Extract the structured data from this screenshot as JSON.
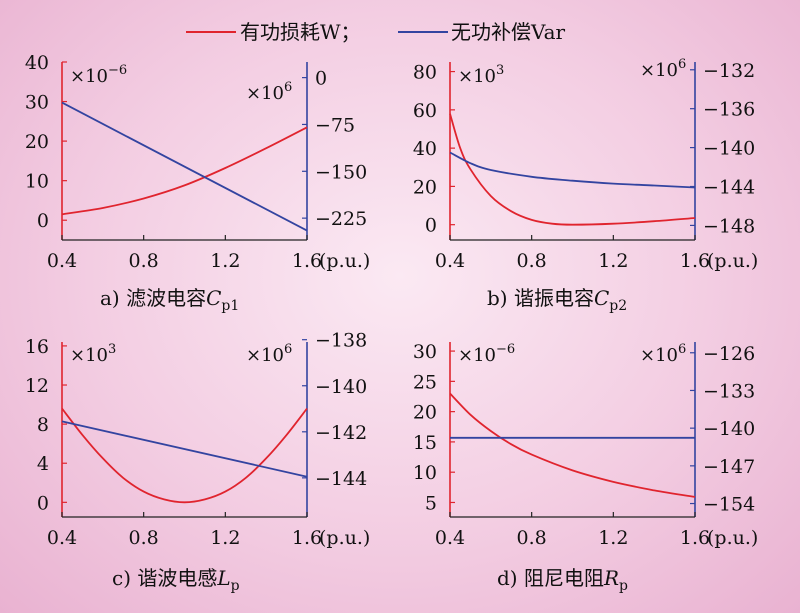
{
  "legend": {
    "active": {
      "label": "有功损耗W；",
      "color": "#e0242e"
    },
    "reactive": {
      "label": "无功补偿Var",
      "color": "#3344a0"
    }
  },
  "chart_data": [
    {
      "type": "line",
      "caption": {
        "prefix": "a) 滤波电容",
        "var": "C",
        "sub": "p1"
      },
      "xlim": [
        0.4,
        1.6
      ],
      "xticks": [
        "0.4",
        "0.8",
        "1.2",
        "1.6"
      ],
      "xunit": "(p.u.)",
      "left_axis": {
        "ylim": [
          -5,
          40
        ],
        "ticks": [
          0,
          10,
          20,
          30,
          40
        ],
        "multiplier": "×10",
        "exp": "−6"
      },
      "right_axis": {
        "ylim": [
          -260,
          25
        ],
        "ticks": [
          "0",
          "−75",
          "−150",
          "−225"
        ],
        "tick_values": [
          0,
          -75,
          -150,
          -225
        ],
        "multiplier": "×10",
        "exp": "6"
      },
      "series": [
        {
          "axis": "left",
          "color": "#e0242e",
          "x": [
            0.4,
            0.6,
            0.8,
            1.0,
            1.2,
            1.4,
            1.6
          ],
          "y": [
            1.5,
            3.1,
            5.5,
            8.8,
            13.2,
            18.2,
            23.5
          ]
        },
        {
          "axis": "right",
          "color": "#3344a0",
          "x": [
            0.4,
            1.6
          ],
          "y": [
            -40,
            -245
          ]
        }
      ]
    },
    {
      "type": "line",
      "caption": {
        "prefix": "b) 谐振电容",
        "var": "C",
        "sub": "p2"
      },
      "xlim": [
        0.4,
        1.6
      ],
      "xticks": [
        "0.4",
        "0.8",
        "1.2",
        "1.6"
      ],
      "xunit": "(p.u.)",
      "left_axis": {
        "ylim": [
          -8,
          85
        ],
        "ticks": [
          0,
          20,
          40,
          60,
          80
        ],
        "multiplier": "×10",
        "exp": "3"
      },
      "right_axis": {
        "ylim": [
          -149.5,
          -131.2
        ],
        "ticks": [
          "−132",
          "−136",
          "−140",
          "−144",
          "−148"
        ],
        "tick_values": [
          -132,
          -136,
          -140,
          -144,
          -148
        ],
        "multiplier": "×10",
        "exp": "6"
      },
      "series": [
        {
          "axis": "left",
          "color": "#e0242e",
          "x": [
            0.4,
            0.45,
            0.5,
            0.6,
            0.7,
            0.8,
            0.9,
            1.0,
            1.2,
            1.4,
            1.6
          ],
          "y": [
            58,
            40,
            29,
            15,
            7,
            2.5,
            0.5,
            0,
            0.5,
            1.8,
            3.5
          ]
        },
        {
          "axis": "right",
          "color": "#3344a0",
          "x": [
            0.4,
            0.5,
            0.6,
            0.8,
            1.0,
            1.2,
            1.4,
            1.6
          ],
          "y": [
            -140.5,
            -141.6,
            -142.3,
            -143.0,
            -143.4,
            -143.7,
            -143.9,
            -144.1
          ]
        }
      ]
    },
    {
      "type": "line",
      "caption": {
        "prefix": "c) 谐波电感",
        "var": "L",
        "sub": "p"
      },
      "xlim": [
        0.4,
        1.6
      ],
      "xticks": [
        "0.4",
        "0.8",
        "1.2",
        "1.6"
      ],
      "xunit": "(p.u.)",
      "left_axis": {
        "ylim": [
          -1.5,
          16.4
        ],
        "ticks": [
          0,
          4,
          8,
          12,
          16
        ],
        "multiplier": "×10",
        "exp": "3"
      },
      "right_axis": {
        "ylim": [
          -145.7,
          -138.1
        ],
        "ticks": [
          "−138",
          "−140",
          "−142",
          "−144"
        ],
        "tick_values": [
          -138,
          -140,
          -142,
          -144
        ],
        "multiplier": "×10",
        "exp": "6"
      },
      "series": [
        {
          "axis": "left",
          "color": "#e0242e",
          "x": [
            0.4,
            0.5,
            0.6,
            0.7,
            0.8,
            0.9,
            1.0,
            1.1,
            1.2,
            1.3,
            1.4,
            1.5,
            1.6
          ],
          "y": [
            9.6,
            6.9,
            4.5,
            2.5,
            1.1,
            0.3,
            0,
            0.3,
            1.1,
            2.5,
            4.5,
            6.9,
            9.6
          ]
        },
        {
          "axis": "right",
          "color": "#3344a0",
          "x": [
            0.4,
            1.6
          ],
          "y": [
            -141.55,
            -143.95
          ]
        }
      ]
    },
    {
      "type": "line",
      "caption": {
        "prefix": "d) 阻尼电阻",
        "var": "R",
        "sub": "p"
      },
      "xlim": [
        0.4,
        1.6
      ],
      "xticks": [
        "0.4",
        "0.8",
        "1.2",
        "1.6"
      ],
      "xunit": "(p.u.)",
      "left_axis": {
        "ylim": [
          2.6,
          31.5
        ],
        "ticks": [
          5,
          10,
          15,
          20,
          25,
          30
        ],
        "multiplier": "×10",
        "exp": "−6"
      },
      "right_axis": {
        "ylim": [
          -156.5,
          -124.0
        ],
        "ticks": [
          "−126",
          "−133",
          "−140",
          "−147",
          "−154"
        ],
        "tick_values": [
          -126,
          -133,
          -140,
          -147,
          -154
        ],
        "multiplier": "×10",
        "exp": "6"
      },
      "series": [
        {
          "axis": "left",
          "color": "#e0242e",
          "x": [
            0.4,
            0.5,
            0.6,
            0.7,
            0.8,
            1.0,
            1.2,
            1.4,
            1.6
          ],
          "y": [
            23,
            19.5,
            16.8,
            14.6,
            12.9,
            10.3,
            8.4,
            7.0,
            5.9
          ]
        },
        {
          "axis": "right",
          "color": "#3344a0",
          "x": [
            0.4,
            1.6
          ],
          "y": [
            -141.8,
            -141.8
          ]
        }
      ]
    }
  ]
}
